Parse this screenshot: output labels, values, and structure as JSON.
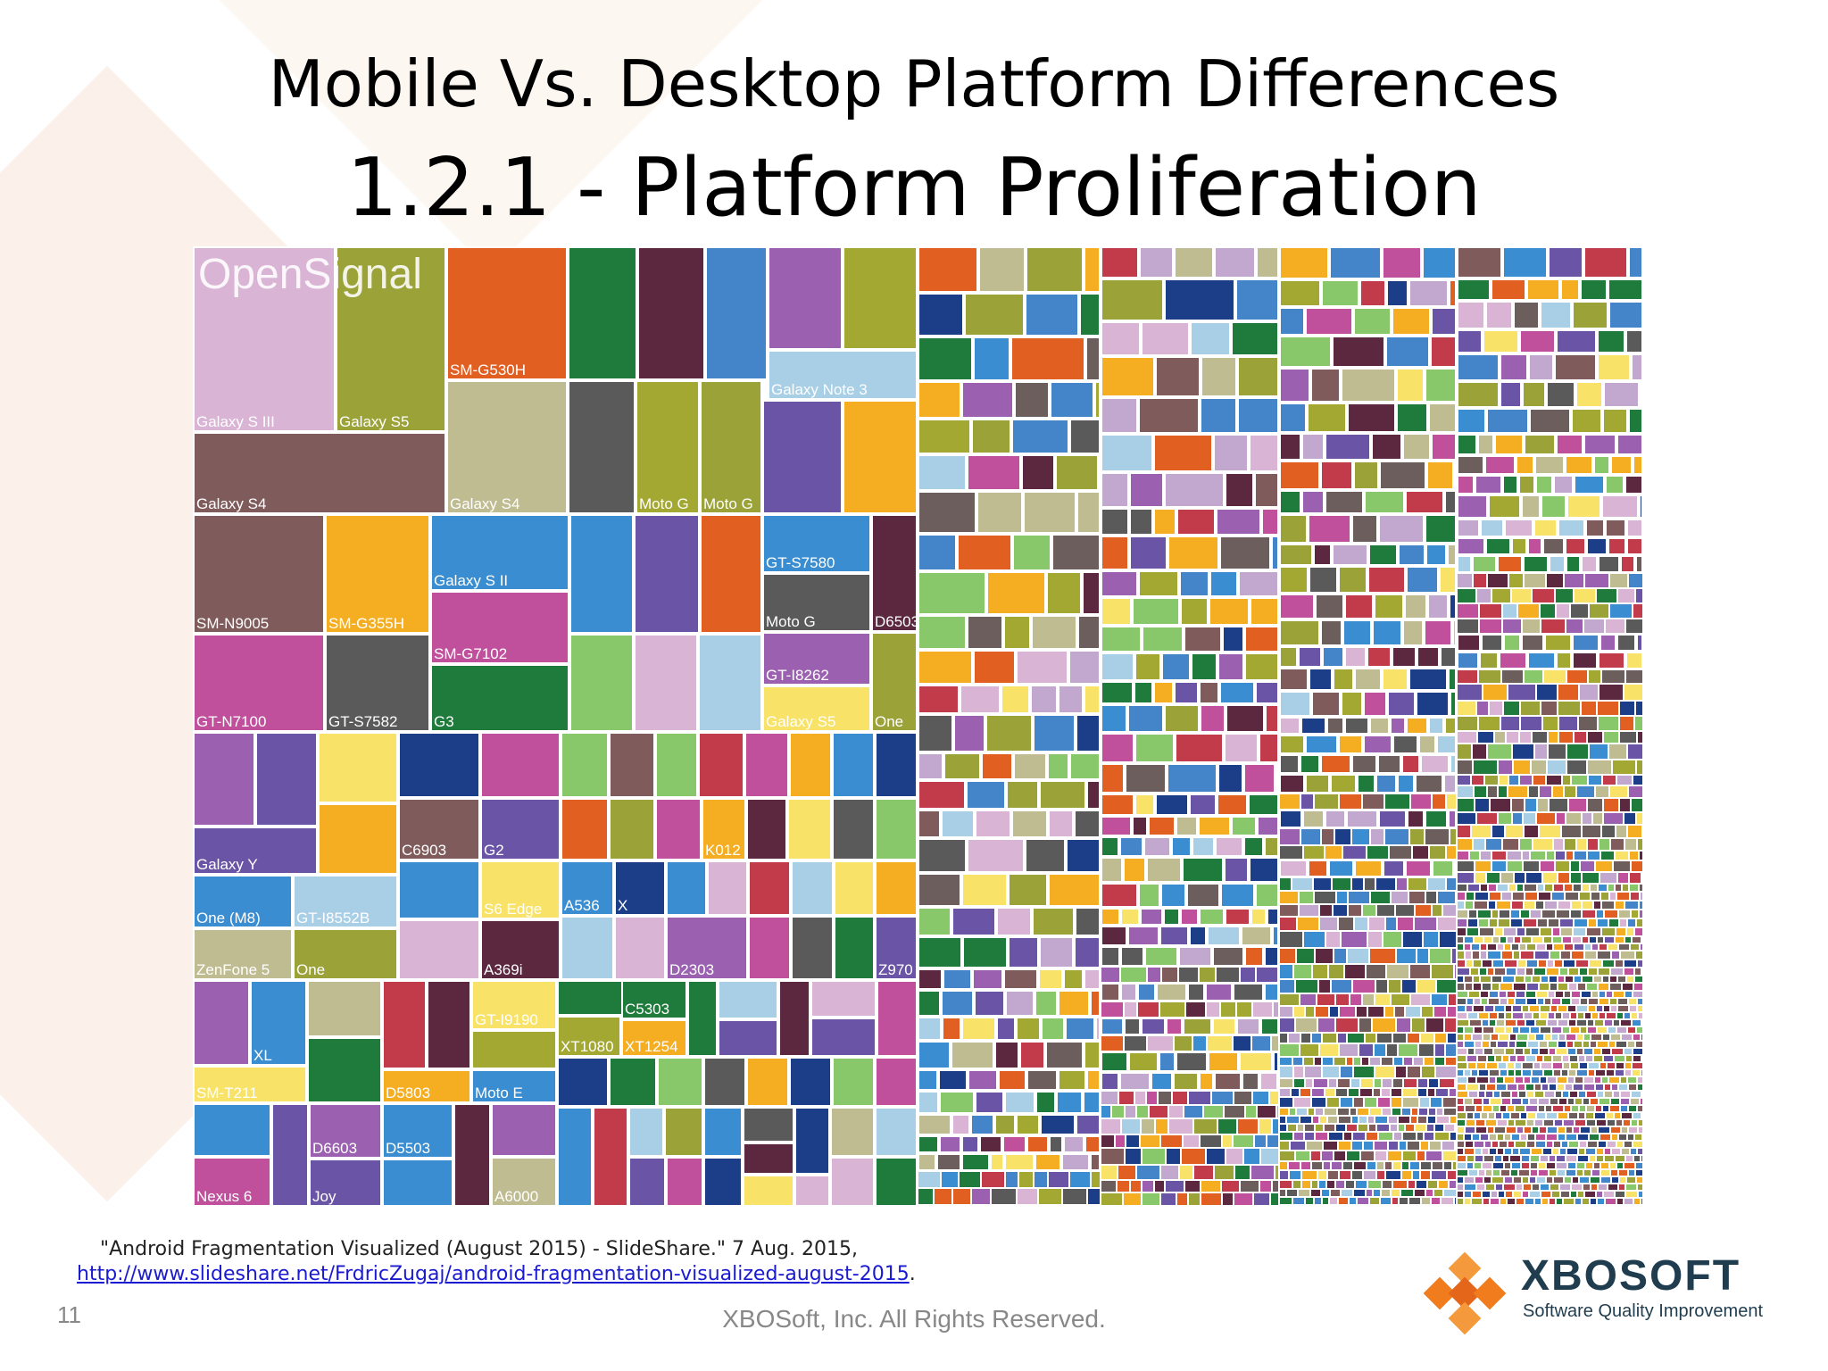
{
  "slide": {
    "title": "Mobile Vs. Desktop Platform Differences",
    "subtitle": "1.2.1 - Platform Proliferation",
    "number": "11",
    "footer": "XBOSoft, Inc. All Rights Reserved."
  },
  "citation": {
    "text": "\"Android Fragmentation Visualized (August 2015) - SlideShare.\" 7 Aug. 2015,",
    "link": "http://www.slideshare.net/FrdricZugaj/android-fragmentation-visualized-august-2015",
    "trailing": "."
  },
  "treemap": {
    "watermark": "OpenSignal",
    "labels": [
      "SM-G530H",
      "Galaxy Note 3",
      "Galaxy S III",
      "Galaxy S5",
      "Galaxy S4",
      "Moto G",
      "GT-S7580",
      "D6503",
      "Galaxy S II",
      "SM-N9005",
      "SM-G355H",
      "SM-G7102",
      "GT-I8262",
      "GT-N7100",
      "GT-S7582",
      "G3",
      "One",
      "Galaxy Y",
      "C6903",
      "G2",
      "K012",
      "One (M8)",
      "GT-I8552B",
      "S6 Edge",
      "A536",
      "X",
      "ZenFone 5",
      "A369i",
      "D2303",
      "Z970",
      "GT-I9190",
      "C5303",
      "XT1080",
      "XT1254",
      "XL",
      "SM-T211",
      "D5803",
      "Moto E",
      "D6603",
      "D5503",
      "Nexus 6",
      "Joy",
      "A6000"
    ],
    "palette": [
      "#c2a8cf",
      "#9aa238",
      "#e25f22",
      "#1e7b3c",
      "#5b2840",
      "#4484c9",
      "#9b61b0",
      "#a3a832",
      "#a9cfe6",
      "#bfbc91",
      "#5a5a5a",
      "#6a54a6",
      "#f5ad22",
      "#7f5b5b",
      "#c04f9c",
      "#c23b4a",
      "#88c86b",
      "#1c3d88",
      "#f8e268",
      "#d9b4d5",
      "#3a8dd0",
      "#6b5e5d"
    ]
  },
  "logo": {
    "name": "XBOSOFT",
    "tagline": "Software Quality Improvement",
    "colors": [
      "#f07c1e",
      "#f49a3c",
      "#e4661a"
    ]
  }
}
